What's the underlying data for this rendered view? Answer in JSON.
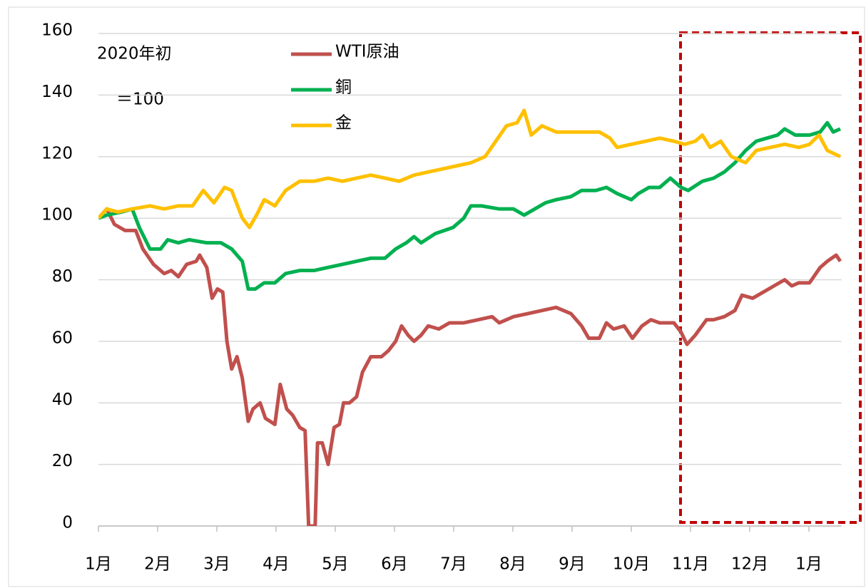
{
  "chart_data": {
    "type": "line",
    "annotations": [
      "2020年初",
      "＝100"
    ],
    "xlim": [
      0,
      12.55
    ],
    "xticks": [
      {
        "value": 0,
        "label": "1月"
      },
      {
        "value": 1,
        "label": "2月"
      },
      {
        "value": 2,
        "label": "3月"
      },
      {
        "value": 3,
        "label": "4月"
      },
      {
        "value": 4,
        "label": "5月"
      },
      {
        "value": 5,
        "label": "6月"
      },
      {
        "value": 6,
        "label": "7月"
      },
      {
        "value": 7,
        "label": "8月"
      },
      {
        "value": 8,
        "label": "9月"
      },
      {
        "value": 9,
        "label": "10月"
      },
      {
        "value": 10,
        "label": "11月"
      },
      {
        "value": 11,
        "label": "12月"
      },
      {
        "value": 12,
        "label": "1月"
      }
    ],
    "ylim": [
      0,
      160
    ],
    "yticks": [
      0,
      20,
      40,
      60,
      80,
      100,
      120,
      140,
      160
    ],
    "grid": true,
    "legend": "top",
    "series": [
      {
        "name": "WTI原油",
        "color": "#c0504d",
        "x": [
          0,
          0.14,
          0.27,
          0.45,
          0.63,
          0.75,
          0.93,
          1.11,
          1.23,
          1.35,
          1.49,
          1.65,
          1.71,
          1.83,
          1.92,
          2.01,
          2.1,
          2.17,
          2.25,
          2.34,
          2.43,
          2.53,
          2.61,
          2.73,
          2.82,
          2.98,
          3.07,
          3.18,
          3.28,
          3.4,
          3.49,
          3.55,
          3.66,
          3.7,
          3.78,
          3.88,
          3.98,
          4.07,
          4.14,
          4.24,
          4.36,
          4.46,
          4.6,
          4.78,
          4.9,
          5.02,
          5.12,
          5.23,
          5.33,
          5.45,
          5.57,
          5.75,
          5.93,
          6.17,
          6.41,
          6.65,
          6.77,
          7.01,
          7.25,
          7.49,
          7.73,
          7.98,
          8.16,
          8.28,
          8.46,
          8.58,
          8.7,
          8.88,
          9.02,
          9.18,
          9.33,
          9.48,
          9.72,
          9.84,
          9.94,
          10.08,
          10.27,
          10.39,
          10.57,
          10.75,
          10.87,
          11.05,
          11.23,
          11.41,
          11.59,
          11.71,
          11.83,
          12.01,
          12.19,
          12.31,
          12.46,
          12.53
        ],
        "values": [
          100,
          103,
          98,
          96,
          96,
          90,
          85,
          82,
          83,
          81,
          85,
          86,
          88,
          84,
          74,
          77,
          76,
          60,
          51,
          55,
          48,
          34,
          38,
          40,
          35,
          33,
          46,
          38,
          36,
          32,
          31,
          0,
          0,
          27,
          27,
          20,
          32,
          33,
          40,
          40,
          42,
          50,
          55,
          55,
          57,
          60,
          65,
          62,
          60,
          62,
          65,
          64,
          66,
          66,
          67,
          68,
          66,
          68,
          69,
          70,
          71,
          69,
          65,
          61,
          61,
          66,
          64,
          65,
          61,
          65,
          67,
          66,
          66,
          63,
          59,
          62,
          67,
          67,
          68,
          70,
          75,
          74,
          76,
          78,
          80,
          78,
          79,
          79,
          84,
          86,
          88,
          86
        ]
      },
      {
        "name": "銅",
        "color": "#00b050",
        "x": [
          0,
          0.14,
          0.39,
          0.57,
          0.69,
          0.87,
          1.05,
          1.17,
          1.35,
          1.53,
          1.83,
          2.07,
          2.25,
          2.43,
          2.53,
          2.65,
          2.8,
          2.98,
          3.16,
          3.4,
          3.64,
          3.88,
          4.12,
          4.36,
          4.6,
          4.84,
          5.02,
          5.2,
          5.33,
          5.45,
          5.69,
          5.99,
          6.17,
          6.29,
          6.47,
          6.77,
          7.01,
          7.19,
          7.37,
          7.55,
          7.73,
          7.98,
          8.16,
          8.4,
          8.58,
          8.76,
          9.0,
          9.12,
          9.3,
          9.48,
          9.66,
          9.84,
          9.96,
          10.2,
          10.39,
          10.57,
          10.75,
          10.93,
          11.11,
          11.29,
          11.47,
          11.59,
          11.77,
          12.01,
          12.19,
          12.31,
          12.41,
          12.53
        ],
        "values": [
          100,
          101,
          102,
          103,
          97,
          90,
          90,
          93,
          92,
          93,
          92,
          92,
          90,
          86,
          77,
          77,
          79,
          79,
          82,
          83,
          83,
          84,
          85,
          86,
          87,
          87,
          90,
          92,
          94,
          92,
          95,
          97,
          100,
          104,
          104,
          103,
          103,
          101,
          103,
          105,
          106,
          107,
          109,
          109,
          110,
          108,
          106,
          108,
          110,
          110,
          113,
          110,
          109,
          112,
          113,
          115,
          118,
          122,
          125,
          126,
          127,
          129,
          127,
          127,
          128,
          131,
          128,
          129
        ]
      },
      {
        "name": "金",
        "color": "#ffc000",
        "x": [
          0,
          0.14,
          0.33,
          0.57,
          0.87,
          1.11,
          1.35,
          1.59,
          1.77,
          1.95,
          2.13,
          2.25,
          2.43,
          2.55,
          2.67,
          2.8,
          2.98,
          3.16,
          3.4,
          3.64,
          3.88,
          4.12,
          4.36,
          4.6,
          4.84,
          5.08,
          5.33,
          5.57,
          5.81,
          6.05,
          6.29,
          6.53,
          6.71,
          6.89,
          7.07,
          7.19,
          7.31,
          7.49,
          7.73,
          7.98,
          8.22,
          8.46,
          8.64,
          8.76,
          9.0,
          9.24,
          9.48,
          9.72,
          9.9,
          10.08,
          10.2,
          10.33,
          10.51,
          10.69,
          10.93,
          11.11,
          11.35,
          11.59,
          11.83,
          12.01,
          12.17,
          12.31,
          12.53
        ],
        "values": [
          100,
          103,
          102,
          103,
          104,
          103,
          104,
          104,
          109,
          105,
          110,
          109,
          100,
          97,
          101,
          106,
          104,
          109,
          112,
          112,
          113,
          112,
          113,
          114,
          113,
          112,
          114,
          115,
          116,
          117,
          118,
          120,
          125,
          130,
          131,
          135,
          127,
          130,
          128,
          128,
          128,
          128,
          126,
          123,
          124,
          125,
          126,
          125,
          124,
          125,
          127,
          123,
          125,
          120,
          118,
          122,
          123,
          124,
          123,
          124,
          127,
          122,
          120
        ]
      }
    ]
  }
}
